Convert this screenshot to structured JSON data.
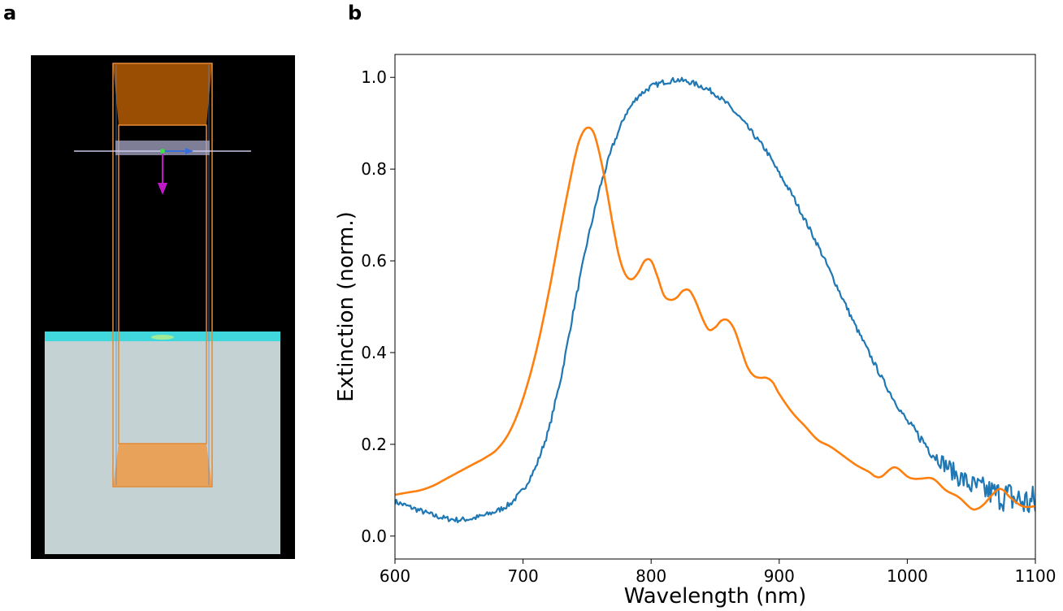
{
  "panels": {
    "a": {
      "label": "a"
    },
    "b": {
      "label": "b"
    }
  },
  "colors": {
    "series_1": "#1f77b4",
    "series_2": "#ff7f0e",
    "sim_background": "#000000",
    "substrate": "#c5d2d4",
    "substrate_top_layer": "#40d8dc",
    "source_top": "#9a4e04",
    "source_bottom": "#e8a25a",
    "arrow_magenta": "#c01ac8",
    "arrow_blue": "#3a6ed8"
  },
  "chart_data": {
    "type": "line",
    "title": "",
    "xlabel": "Wavelength (nm)",
    "ylabel": "Extinction (norm.)",
    "xlim": [
      600,
      1100
    ],
    "ylim": [
      -0.05,
      1.05
    ],
    "xticks": [
      600,
      700,
      800,
      900,
      1000,
      1100
    ],
    "yticks": [
      0.0,
      0.2,
      0.4,
      0.6,
      0.8,
      1.0
    ],
    "grid": false,
    "legend": "none",
    "series": [
      {
        "color": "#1f77b4",
        "noisy": true,
        "x": [
          600,
          610,
          620,
          630,
          640,
          650,
          660,
          670,
          680,
          690,
          700,
          710,
          720,
          730,
          740,
          750,
          760,
          770,
          780,
          790,
          800,
          810,
          820,
          830,
          840,
          850,
          860,
          870,
          880,
          890,
          900,
          910,
          920,
          930,
          940,
          950,
          960,
          970,
          980,
          990,
          1000,
          1010,
          1020,
          1030,
          1040,
          1050,
          1060,
          1070,
          1080,
          1090,
          1100
        ],
        "y": [
          0.075,
          0.065,
          0.055,
          0.045,
          0.038,
          0.035,
          0.038,
          0.045,
          0.055,
          0.07,
          0.1,
          0.15,
          0.23,
          0.35,
          0.5,
          0.64,
          0.76,
          0.85,
          0.92,
          0.96,
          0.98,
          0.99,
          0.995,
          0.99,
          0.98,
          0.965,
          0.94,
          0.91,
          0.875,
          0.84,
          0.79,
          0.745,
          0.69,
          0.635,
          0.575,
          0.515,
          0.455,
          0.4,
          0.345,
          0.295,
          0.25,
          0.215,
          0.18,
          0.155,
          0.13,
          0.11,
          0.1,
          0.09,
          0.085,
          0.075,
          0.07
        ]
      },
      {
        "color": "#ff7f0e",
        "noisy": false,
        "x": [
          600,
          610,
          620,
          630,
          640,
          650,
          660,
          670,
          680,
          690,
          700,
          710,
          720,
          730,
          740,
          745,
          750,
          755,
          760,
          765,
          770,
          775,
          780,
          785,
          790,
          795,
          800,
          805,
          810,
          815,
          820,
          825,
          830,
          835,
          840,
          845,
          850,
          855,
          860,
          865,
          870,
          875,
          880,
          885,
          890,
          895,
          900,
          910,
          920,
          930,
          940,
          950,
          960,
          970,
          975,
          980,
          990,
          1000,
          1005,
          1010,
          1020,
          1030,
          1040,
          1050,
          1055,
          1060,
          1070,
          1075,
          1080,
          1090,
          1100
        ],
        "y": [
          0.09,
          0.095,
          0.1,
          0.11,
          0.125,
          0.14,
          0.155,
          0.17,
          0.19,
          0.23,
          0.3,
          0.4,
          0.53,
          0.68,
          0.82,
          0.87,
          0.89,
          0.88,
          0.83,
          0.76,
          0.68,
          0.61,
          0.57,
          0.56,
          0.575,
          0.6,
          0.6,
          0.565,
          0.525,
          0.515,
          0.52,
          0.535,
          0.535,
          0.51,
          0.475,
          0.45,
          0.455,
          0.47,
          0.47,
          0.45,
          0.41,
          0.37,
          0.35,
          0.345,
          0.345,
          0.335,
          0.31,
          0.27,
          0.24,
          0.21,
          0.195,
          0.175,
          0.155,
          0.14,
          0.13,
          0.13,
          0.15,
          0.13,
          0.125,
          0.125,
          0.125,
          0.1,
          0.085,
          0.06,
          0.06,
          0.07,
          0.1,
          0.1,
          0.085,
          0.065,
          0.065
        ]
      }
    ]
  }
}
